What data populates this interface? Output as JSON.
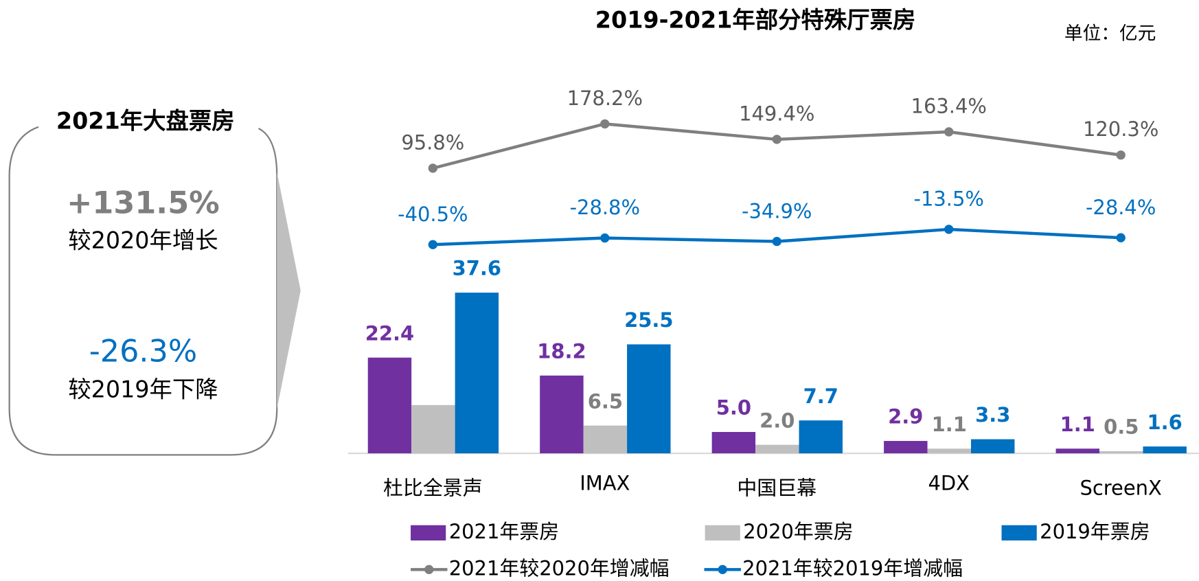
{
  "chart_data": {
    "type": "bar",
    "title": "2019-2021年部分特殊厅票房",
    "unit": "单位：亿元",
    "categories": [
      "杜比全景声",
      "IMAX",
      "中国巨幕",
      "4DX",
      "ScreenX"
    ],
    "series": [
      {
        "name": "2021年票房",
        "type": "bar",
        "color": "#7030a0",
        "values": [
          22.4,
          18.2,
          5.0,
          2.9,
          1.1
        ],
        "value_labels": [
          "22.4",
          "18.2",
          "5.0",
          "2.9",
          "1.1"
        ]
      },
      {
        "name": "2020年票房",
        "type": "bar",
        "color": "#bfbfbf",
        "values": [
          11.3,
          6.5,
          2.0,
          1.1,
          0.5
        ],
        "value_labels": [
          null,
          "6.5",
          "2.0",
          "1.1",
          "0.5"
        ]
      },
      {
        "name": "2019年票房",
        "type": "bar",
        "color": "#0070c0",
        "values": [
          37.6,
          25.5,
          7.7,
          3.3,
          1.6
        ],
        "value_labels": [
          "37.6",
          "25.5",
          "7.7",
          "3.3",
          "1.6"
        ]
      },
      {
        "name": "2021年较2020年增减幅",
        "type": "line",
        "color": "#7f7f7f",
        "values": [
          95.8,
          178.2,
          149.4,
          163.4,
          120.3
        ],
        "value_labels": [
          "95.8%",
          "178.2%",
          "149.4%",
          "163.4%",
          "120.3%"
        ]
      },
      {
        "name": "2021年较2019年增减幅",
        "type": "line",
        "color": "#0070c0",
        "values": [
          -40.5,
          -28.8,
          -34.9,
          -13.5,
          -28.4
        ],
        "value_labels": [
          "-40.5%",
          "-28.8%",
          "-34.9%",
          "-13.5%",
          "-28.4%"
        ]
      }
    ]
  },
  "summary": {
    "title": "2021年大盘票房",
    "items": [
      {
        "value": "+131.5%",
        "label": "较2020年增长"
      },
      {
        "value": "-26.3%",
        "label": "较2019年下降"
      }
    ]
  }
}
